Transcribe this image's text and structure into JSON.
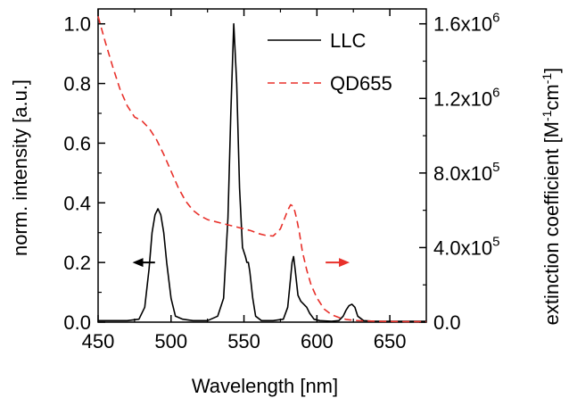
{
  "chart_data": {
    "type": "line",
    "xlabel": "Wavelength [nm]",
    "ylabel_left": "norm. intensity [a.u.]",
    "ylabel_right": "extinction coefficient [M",
    "ylabel_right_sup1": "-1",
    "ylabel_right_mid": "cm",
    "ylabel_right_sup2": "-1",
    "ylabel_right_end": "]",
    "xlim": [
      450,
      675
    ],
    "ylim_left": [
      0,
      1.05
    ],
    "ylim_right": [
      0,
      1680000.0
    ],
    "x_ticks": [
      450,
      500,
      550,
      600,
      650
    ],
    "x_tick_labels": [
      "450",
      "500",
      "550",
      "600",
      "650"
    ],
    "y_left_ticks": [
      0,
      0.2,
      0.4,
      0.6,
      0.8,
      1.0
    ],
    "y_left_tick_labels": [
      "0.0",
      "0.2",
      "0.4",
      "0.6",
      "0.8",
      "1.0"
    ],
    "y_right_ticks": [
      0,
      400000,
      800000,
      1200000,
      1600000
    ],
    "y_right_tick_labels": [
      {
        "base": "0.0",
        "exp": ""
      },
      {
        "base": "4.0x10",
        "exp": "5"
      },
      {
        "base": "8.0x10",
        "exp": "5"
      },
      {
        "base": "1.2x10",
        "exp": "6"
      },
      {
        "base": "1.6x10",
        "exp": "6"
      }
    ],
    "grid": false,
    "legend_position": "top-right",
    "series": [
      {
        "name": "LLC",
        "axis": "left",
        "color": "#000000",
        "style": "solid",
        "x": [
          450,
          470,
          478,
          482,
          485,
          487,
          489,
          491,
          493,
          495,
          497,
          500,
          503,
          508,
          515,
          525,
          532,
          536,
          539,
          541,
          543,
          545,
          547,
          549,
          551,
          552,
          553,
          554,
          556,
          558,
          562,
          570,
          577,
          580,
          582,
          583,
          584,
          585,
          587,
          589,
          591,
          593,
          595,
          598,
          602,
          610,
          615,
          618,
          620,
          622,
          624,
          626,
          628,
          632,
          640,
          650,
          660,
          675
        ],
        "y": [
          0.005,
          0.005,
          0.01,
          0.05,
          0.18,
          0.3,
          0.36,
          0.38,
          0.36,
          0.3,
          0.2,
          0.08,
          0.02,
          0.01,
          0.005,
          0.005,
          0.02,
          0.08,
          0.35,
          0.7,
          1.0,
          0.8,
          0.45,
          0.25,
          0.22,
          0.2,
          0.2,
          0.17,
          0.08,
          0.02,
          0.005,
          0.005,
          0.01,
          0.05,
          0.15,
          0.2,
          0.22,
          0.18,
          0.09,
          0.07,
          0.06,
          0.05,
          0.03,
          0.01,
          0.005,
          0.003,
          0.005,
          0.02,
          0.04,
          0.055,
          0.06,
          0.05,
          0.02,
          0.005,
          0.003,
          0.003,
          0.003,
          0.003
        ]
      },
      {
        "name": "QD655",
        "axis": "right",
        "color": "#e8302a",
        "style": "dashed",
        "x": [
          450,
          455,
          460,
          465,
          470,
          475,
          480,
          485,
          490,
          495,
          500,
          505,
          510,
          515,
          520,
          525,
          530,
          535,
          540,
          545,
          550,
          555,
          560,
          565,
          570,
          575,
          578,
          580,
          582,
          584,
          586,
          588,
          590,
          593,
          596,
          600,
          605,
          610,
          615,
          620,
          625,
          630,
          640,
          650,
          660,
          675
        ],
        "y": [
          1640000,
          1500000,
          1370000,
          1250000,
          1160000,
          1100000,
          1080000,
          1040000,
          980000,
          900000,
          810000,
          720000,
          650000,
          600000,
          570000,
          550000,
          540000,
          530000,
          520000,
          510000,
          500000,
          490000,
          475000,
          465000,
          462000,
          500000,
          560000,
          600000,
          630000,
          620000,
          560000,
          480000,
          380000,
          280000,
          200000,
          130000,
          70000,
          40000,
          25000,
          15000,
          10000,
          7000,
          5000,
          4000,
          3000,
          3000
        ]
      }
    ],
    "annotations": [
      {
        "type": "arrow",
        "direction": "left",
        "color": "#000000",
        "x_from": 489,
        "x_to": 476,
        "y_axis": "left",
        "y": 0.2
      },
      {
        "type": "arrow",
        "direction": "right",
        "color": "#e8302a",
        "x_from": 606,
        "x_to": 620,
        "y_axis": "left",
        "y": 0.2
      }
    ]
  }
}
